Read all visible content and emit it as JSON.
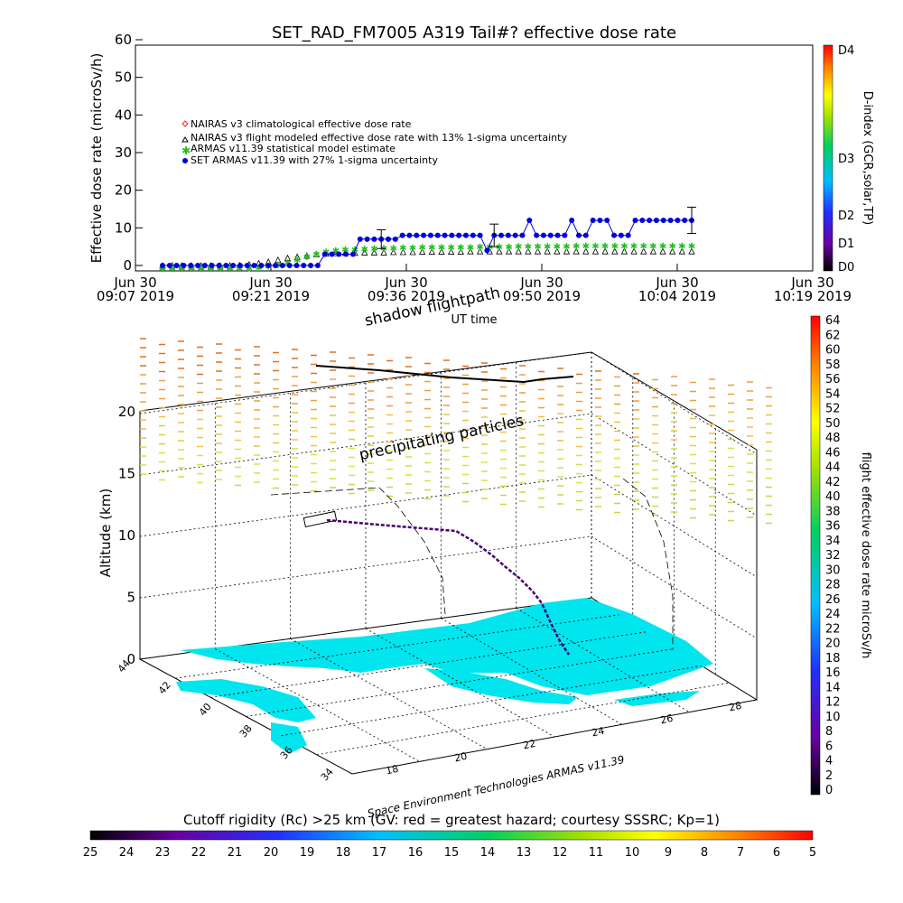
{
  "chart_data": [
    {
      "type": "line",
      "title": "SET_RAD_FM7005  A319 Tail#? effective dose rate",
      "ylabel": "Effective dose rate (microSv/h)",
      "xlabel": "UT time",
      "ylim": [
        0,
        60
      ],
      "y_ticks": [
        "0",
        "10",
        "20",
        "30",
        "40",
        "50",
        "60"
      ],
      "x_ticks": [
        {
          "l1": "Jun 30",
          "l2": "09:07 2019"
        },
        {
          "l1": "Jun 30",
          "l2": "09:21 2019"
        },
        {
          "l1": "Jun 30",
          "l2": "09:36 2019"
        },
        {
          "l1": "Jun 30",
          "l2": "09:50 2019"
        },
        {
          "l1": "Jun 30",
          "l2": "10:04 2019"
        },
        {
          "l1": "Jun 30",
          "l2": "10:19 2019"
        }
      ],
      "legend_position": "upper-left",
      "series": [
        {
          "name": "NAIRAS v3 climatological effective dose rate",
          "marker": "diamond",
          "color": "#e03020"
        },
        {
          "name": "NAIRAS v3 flight modeled effective dose rate with 13% 1-sigma uncertainty",
          "marker": "triangle",
          "color": "#000000",
          "values": [
            0,
            0,
            0,
            0,
            0,
            0,
            0,
            0,
            0.1,
            0.3,
            0.6,
            1,
            1.5,
            2,
            2.3,
            2.6,
            3,
            3.2,
            3.3,
            3.4,
            3.4,
            3.5,
            3.5,
            3.5,
            3.6,
            3.6,
            3.6,
            3.7,
            3.7,
            3.7,
            3.7,
            3.7,
            3.8,
            3.8,
            3.8,
            3.8,
            3.8,
            3.8,
            3.8,
            3.8,
            3.8,
            3.8,
            3.8,
            3.8,
            3.8,
            3.8,
            3.8,
            3.8,
            3.8,
            3.8,
            3.8,
            3.8,
            3.8,
            3.8,
            3.8,
            3.8
          ]
        },
        {
          "name": "ARMAS v11.39 statistical model estimate",
          "marker": "asterisk",
          "color": "#20c020",
          "values": [
            0,
            0,
            0,
            0,
            0,
            0,
            0,
            0,
            0,
            0.1,
            0.3,
            0.6,
            1,
            1.6,
            2.3,
            3.1,
            3.8,
            4.4,
            4.8,
            5,
            5.1,
            5.2,
            5.3,
            5.4,
            5.4,
            5.5,
            5.5,
            5.6,
            5.6,
            5.6,
            5.7,
            5.7,
            5.7,
            5.8,
            5.8,
            5.8,
            5.8,
            5.9,
            5.9,
            5.9,
            5.9,
            5.9,
            5.9,
            6,
            6,
            6,
            6,
            6,
            6,
            6,
            6,
            6,
            6,
            6,
            6,
            6
          ]
        },
        {
          "name": "SET ARMAS v11.39 with 27% 1-sigma uncertainty",
          "marker": "circle",
          "color": "#0000dd",
          "values": [
            0,
            0,
            0,
            0,
            0,
            0,
            0,
            0,
            0,
            0,
            0,
            0,
            0,
            0,
            0,
            0,
            0,
            0,
            0,
            0,
            0,
            0,
            0,
            3,
            3,
            3,
            3,
            3,
            7,
            7,
            7,
            7,
            7,
            7,
            8,
            8,
            8,
            8,
            8,
            8,
            8,
            8,
            8,
            8,
            8,
            8,
            4,
            8,
            8,
            8,
            8,
            8,
            12,
            8,
            8,
            8,
            8,
            8,
            12,
            8,
            8,
            12,
            12,
            12,
            8,
            8,
            8,
            12,
            12,
            12,
            12,
            12,
            12,
            12,
            12,
            12
          ]
        }
      ],
      "right_axis": {
        "label": "D-index (GCR,solar,TP)",
        "ticks": [
          "D4",
          "D3",
          "D2",
          "D1",
          "D0"
        ]
      }
    },
    {
      "type": "scatter",
      "xlabel": "",
      "ylabel": "Altitude (km)",
      "z_ticks": [
        "0",
        "5",
        "10",
        "15",
        "20"
      ],
      "lat_ticks": [
        "44",
        "42",
        "40",
        "38",
        "36",
        "34"
      ],
      "lon_ticks": [
        "18",
        "20",
        "22",
        "24",
        "26",
        "28"
      ],
      "xlim": [
        17,
        29
      ],
      "ylim": [
        34,
        44
      ],
      "zlim": [
        0,
        23
      ],
      "colorbar": {
        "label": "flight effective dose rate microSv/h",
        "min": 0,
        "max": 64,
        "step": 2
      },
      "series": [
        {
          "name": "flightpath"
        },
        {
          "name": "shadow flightpath"
        },
        {
          "name": "precipitating particles"
        }
      ],
      "annotations": [
        "shadow flightpath",
        "precipitating particles",
        "Space Environment Technologies ARMAS v11.39"
      ]
    }
  ],
  "bottom_colorbar": {
    "label": "Cutoff rigidity (Rc) >25 km (GV: red = greatest hazard; courtesy SSSRC; Kp=1)",
    "ticks": [
      "25",
      "24",
      "23",
      "22",
      "21",
      "20",
      "19",
      "18",
      "17",
      "16",
      "15",
      "14",
      "13",
      "12",
      "11",
      "10",
      "9",
      "8",
      "7",
      "6",
      "5"
    ]
  },
  "colors": {
    "blue": "#0000dd",
    "green": "#20c020",
    "black": "#000000",
    "sea": "#00e5ee"
  }
}
